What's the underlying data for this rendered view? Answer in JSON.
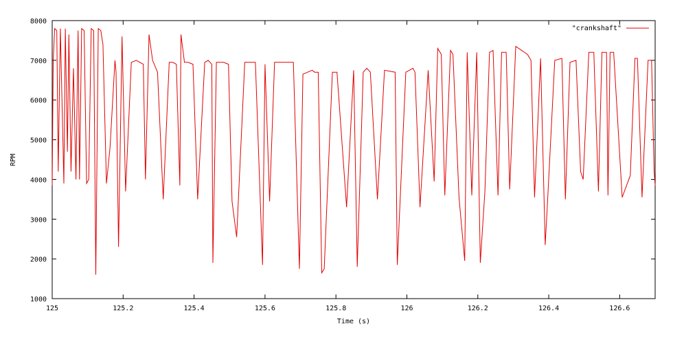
{
  "chart_data": {
    "type": "line",
    "title": "",
    "xlabel": "Time (s)",
    "ylabel": "RPM",
    "xlim": [
      125,
      126.7
    ],
    "ylim": [
      1000,
      8000
    ],
    "x_ticks": [
      125,
      125.2,
      125.4,
      125.6,
      125.8,
      126,
      126.2,
      126.4,
      126.6
    ],
    "x_tick_labels": [
      "125",
      "125.2",
      "125.4",
      "125.6",
      "125.8",
      "126",
      "126.2",
      "126.4",
      "126.6"
    ],
    "y_ticks": [
      1000,
      2000,
      3000,
      4000,
      5000,
      6000,
      7000,
      8000
    ],
    "y_tick_labels": [
      "1000",
      "2000",
      "3000",
      "4000",
      "5000",
      "6000",
      "7000",
      "8000"
    ],
    "grid": false,
    "legend_position": "top-right",
    "series_color": "#e00000",
    "series": [
      {
        "name": "\"crankshaft\"",
        "x": [
          125.0,
          125.003,
          125.007,
          125.013,
          125.017,
          125.023,
          125.033,
          125.037,
          125.043,
          125.047,
          125.053,
          125.06,
          125.067,
          125.073,
          125.077,
          125.083,
          125.09,
          125.097,
          125.103,
          125.11,
          125.117,
          125.123,
          125.13,
          125.137,
          125.143,
          125.153,
          125.163,
          125.177,
          125.18,
          125.187,
          125.197,
          125.207,
          125.223,
          125.237,
          125.257,
          125.263,
          125.273,
          125.283,
          125.297,
          125.313,
          125.33,
          125.34,
          125.35,
          125.36,
          125.363,
          125.373,
          125.383,
          125.397,
          125.41,
          125.43,
          125.44,
          125.45,
          125.453,
          125.463,
          125.483,
          125.497,
          125.507,
          125.52,
          125.543,
          125.56,
          125.573,
          125.593,
          125.6,
          125.613,
          125.627,
          125.657,
          125.667,
          125.68,
          125.697,
          125.707,
          125.733,
          125.74,
          125.75,
          125.76,
          125.767,
          125.79,
          125.803,
          125.83,
          125.85,
          125.86,
          125.877,
          125.887,
          125.897,
          125.917,
          125.937,
          125.967,
          125.973,
          125.997,
          126.017,
          126.023,
          126.037,
          126.06,
          126.077,
          126.087,
          126.097,
          126.107,
          126.123,
          126.13,
          126.147,
          126.163,
          126.17,
          126.183,
          126.197,
          126.207,
          126.22,
          126.233,
          126.243,
          126.257,
          126.267,
          126.28,
          126.29,
          126.307,
          126.34,
          126.35,
          126.36,
          126.377,
          126.39,
          126.397,
          126.417,
          126.437,
          126.447,
          126.46,
          126.477,
          126.49,
          126.497,
          126.513,
          126.527,
          126.54,
          126.55,
          126.563,
          126.567,
          126.573,
          126.583,
          126.607,
          126.63,
          126.643,
          126.65,
          126.663,
          126.68,
          126.69,
          126.697,
          126.7
        ],
        "y": [
          3850,
          7000,
          7800,
          7750,
          4200,
          7800,
          3900,
          7800,
          4700,
          7650,
          4200,
          6800,
          4000,
          7750,
          4000,
          7800,
          7750,
          3900,
          4000,
          7800,
          7750,
          1600,
          7800,
          7750,
          7400,
          3900,
          4800,
          7000,
          6700,
          2300,
          7600,
          3700,
          6950,
          7000,
          6900,
          4000,
          7650,
          7000,
          6700,
          3500,
          6950,
          6950,
          6900,
          3850,
          7650,
          6950,
          6950,
          6900,
          3500,
          6950,
          7000,
          6900,
          1900,
          6950,
          6950,
          6900,
          3450,
          2550,
          6950,
          6950,
          6950,
          1850,
          6900,
          3450,
          6950,
          6950,
          6950,
          6950,
          1750,
          6650,
          6750,
          6700,
          6700,
          1650,
          1750,
          6700,
          6700,
          3300,
          6750,
          1800,
          6700,
          6800,
          6700,
          3500,
          6750,
          6700,
          1850,
          6700,
          6800,
          6700,
          3300,
          6750,
          3950,
          7300,
          7150,
          3600,
          7250,
          7150,
          3550,
          1950,
          7200,
          3600,
          7200,
          1900,
          3700,
          7200,
          7250,
          3600,
          7200,
          7200,
          3750,
          7350,
          7150,
          7000,
          3550,
          7050,
          2350,
          3500,
          7000,
          7050,
          3500,
          6950,
          7000,
          4200,
          4000,
          7200,
          7200,
          3700,
          7200,
          7200,
          3600,
          7200,
          7200,
          3550,
          4100,
          7050,
          7050,
          3550,
          7000,
          7000,
          4200,
          3850
        ]
      }
    ]
  }
}
